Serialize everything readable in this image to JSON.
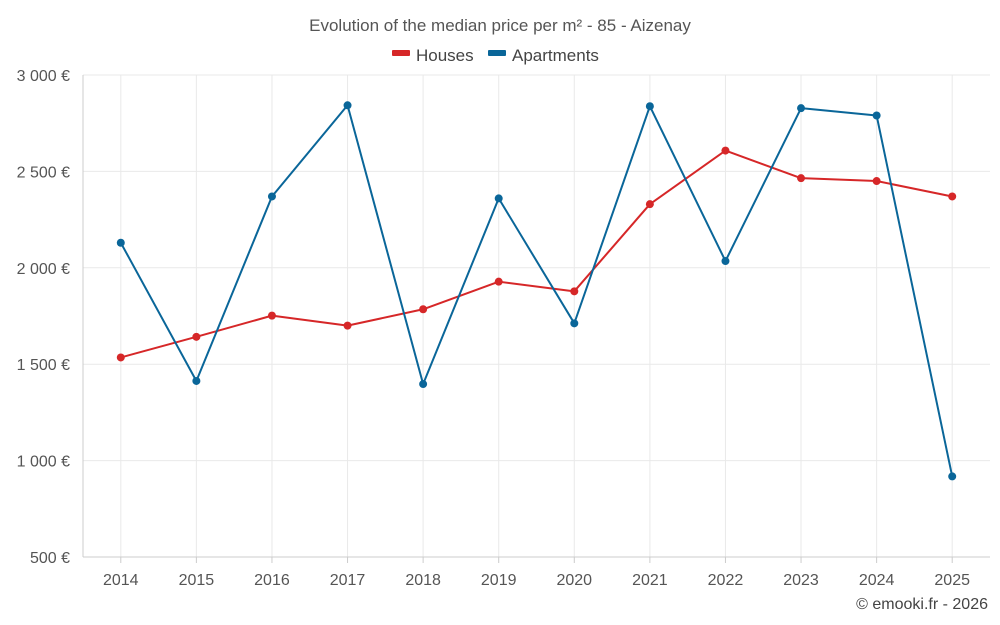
{
  "chart_data": {
    "type": "line",
    "title": "Evolution of the median price per m² - 85 - Aizenay",
    "categories": [
      "2014",
      "2015",
      "2016",
      "2017",
      "2018",
      "2019",
      "2020",
      "2021",
      "2022",
      "2023",
      "2024",
      "2025"
    ],
    "ylim": [
      500,
      3000
    ],
    "yticks": [
      500,
      1000,
      1500,
      2000,
      2500,
      3000
    ],
    "ytick_labels": [
      "500 €",
      "1 000 €",
      "1 500 €",
      "2 000 €",
      "2 500 €",
      "3 000 €"
    ],
    "xlabel": "",
    "ylabel": "",
    "grid": true,
    "legend_position": "top-center",
    "series": [
      {
        "name": "Houses",
        "color": "#d62728",
        "values": [
          1535,
          1642,
          1752,
          1700,
          1785,
          1928,
          1878,
          2330,
          2608,
          2465,
          2450,
          2370
        ]
      },
      {
        "name": "Apartments",
        "color": "#0a6699",
        "values": [
          2130,
          1413,
          2370,
          2843,
          1397,
          2360,
          1712,
          2838,
          2035,
          2828,
          2790,
          918
        ]
      }
    ],
    "credit": "© emooki.fr - 2026"
  }
}
